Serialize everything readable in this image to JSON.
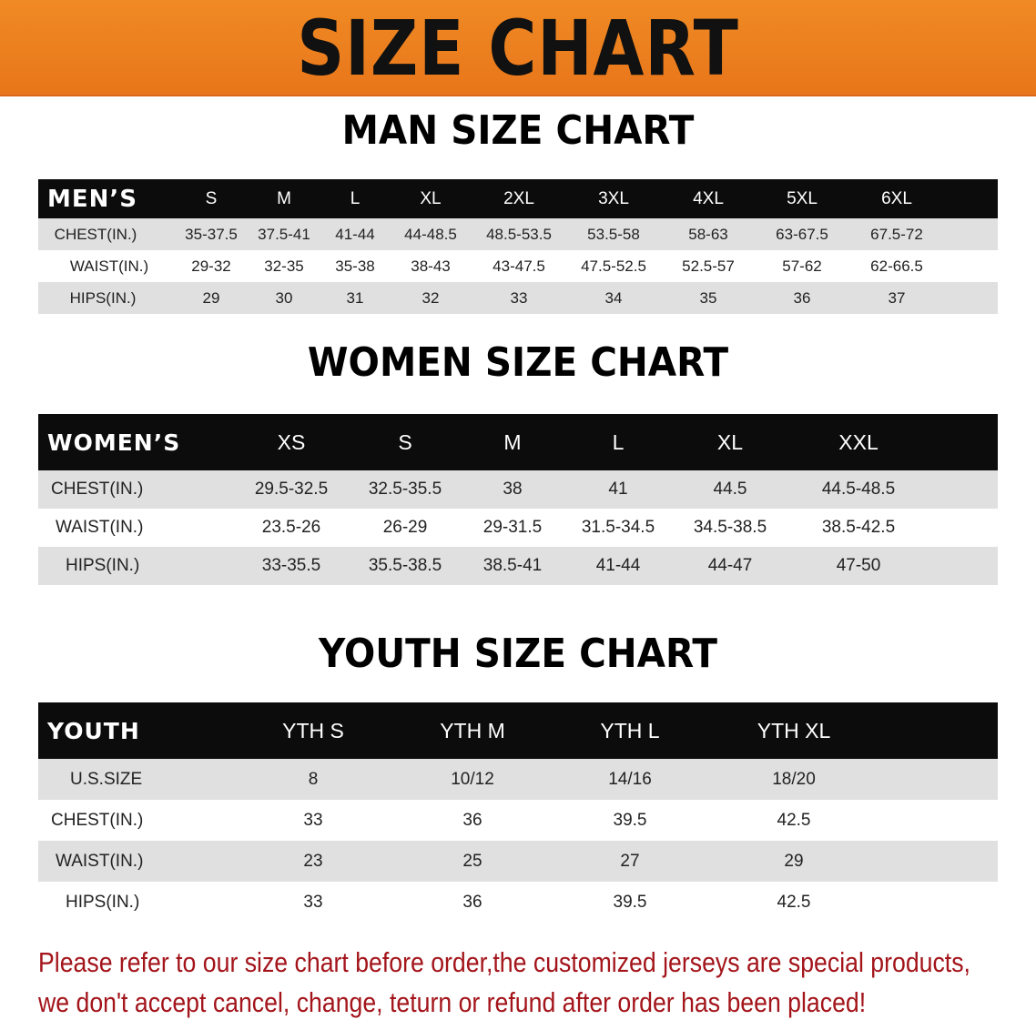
{
  "banner": {
    "title": "SIZE CHART",
    "color": "#ec801f"
  },
  "men": {
    "title": "MAN SIZE CHART",
    "header": "MEN’S",
    "sizes": [
      "S",
      "M",
      "L",
      "XL",
      "2XL",
      "3XL",
      "4XL",
      "5XL",
      "6XL"
    ],
    "rows": [
      {
        "label": "CHEST(IN.)",
        "values": [
          "35-37.5",
          "37.5-41",
          "41-44",
          "44-48.5",
          "48.5-53.5",
          "53.5-58",
          "58-63",
          "63-67.5",
          "67.5-72"
        ]
      },
      {
        "label": "WAIST(IN.)",
        "values": [
          "29-32",
          "32-35",
          "35-38",
          "38-43",
          "43-47.5",
          "47.5-52.5",
          "52.5-57",
          "57-62",
          "62-66.5"
        ]
      },
      {
        "label": "HIPS(IN.)",
        "values": [
          "29",
          "30",
          "31",
          "32",
          "33",
          "34",
          "35",
          "36",
          "37"
        ]
      }
    ]
  },
  "women": {
    "title": "WOMEN SIZE CHART",
    "header": "WOMEN’S",
    "sizes": [
      "XS",
      "S",
      "M",
      "L",
      "XL",
      "XXL"
    ],
    "rows": [
      {
        "label": "CHEST(IN.)",
        "values": [
          "29.5-32.5",
          "32.5-35.5",
          "38",
          "41",
          "44.5",
          "44.5-48.5"
        ]
      },
      {
        "label": "WAIST(IN.)",
        "values": [
          "23.5-26",
          "26-29",
          "29-31.5",
          "31.5-34.5",
          "34.5-38.5",
          "38.5-42.5"
        ]
      },
      {
        "label": "HIPS(IN.)",
        "values": [
          "33-35.5",
          "35.5-38.5",
          "38.5-41",
          "41-44",
          "44-47",
          "47-50"
        ]
      }
    ]
  },
  "youth": {
    "title": "YOUTH SIZE CHART",
    "header": "YOUTH",
    "sizes": [
      "YTH S",
      "YTH M",
      "YTH L",
      "YTH XL"
    ],
    "rows": [
      {
        "label": "U.S.SIZE",
        "values": [
          "8",
          "10/12",
          "14/16",
          "18/20"
        ]
      },
      {
        "label": "CHEST(IN.)",
        "values": [
          "33",
          "36",
          "39.5",
          "42.5"
        ]
      },
      {
        "label": "WAIST(IN.)",
        "values": [
          "23",
          "25",
          "27",
          "29"
        ]
      },
      {
        "label": "HIPS(IN.)",
        "values": [
          "33",
          "36",
          "39.5",
          "42.5"
        ]
      }
    ]
  },
  "note": {
    "line1": "Please refer to our size chart before order,the customized jerseys are special products,",
    "line2": "we don't accept cancel, change, teturn or refund after order has been placed!",
    "color": "#a3151b"
  }
}
